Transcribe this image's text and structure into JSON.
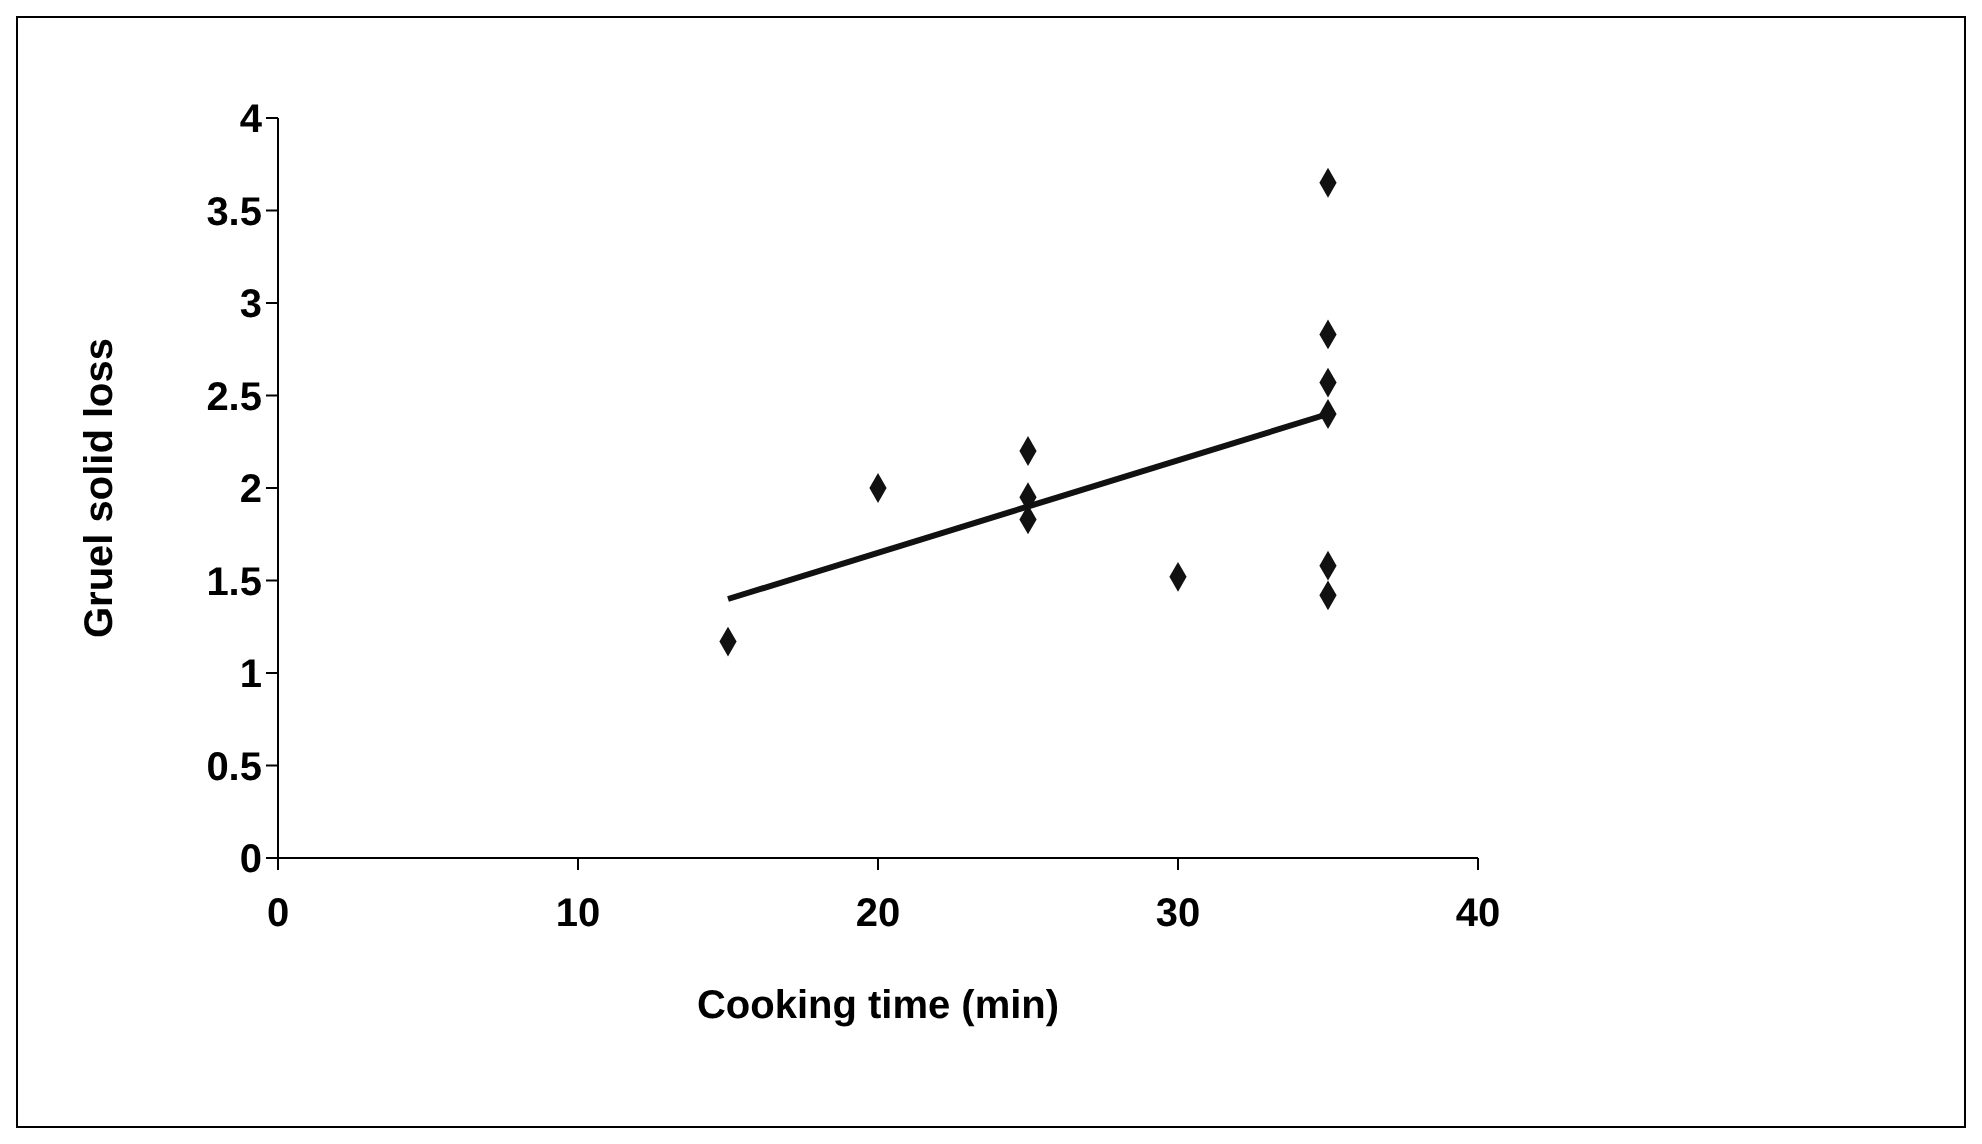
{
  "chart_data": {
    "type": "scatter",
    "xlabel": "Cooking time (min)",
    "ylabel": "Gruel solid loss",
    "xlim": [
      0,
      40
    ],
    "xticks": [
      0,
      10,
      20,
      30,
      40
    ],
    "ylim": [
      0,
      4
    ],
    "yticks": [
      0,
      0.5,
      1,
      1.5,
      2,
      2.5,
      3,
      3.5,
      4
    ],
    "grid": false,
    "legend": false,
    "marker": "diamond",
    "series": [
      {
        "type": "scatter",
        "color": "#111111",
        "x": [
          15,
          20,
          25,
          25,
          25,
          30,
          35,
          35,
          35,
          35,
          35,
          35
        ],
        "values": [
          1.17,
          2.0,
          2.2,
          1.95,
          1.83,
          1.52,
          3.65,
          2.83,
          2.57,
          2.4,
          1.58,
          1.42
        ]
      },
      {
        "type": "line",
        "color": "#111111",
        "marker": "none",
        "line_style": "solid",
        "x": [
          15,
          35
        ],
        "values": [
          1.4,
          2.4
        ]
      }
    ]
  }
}
